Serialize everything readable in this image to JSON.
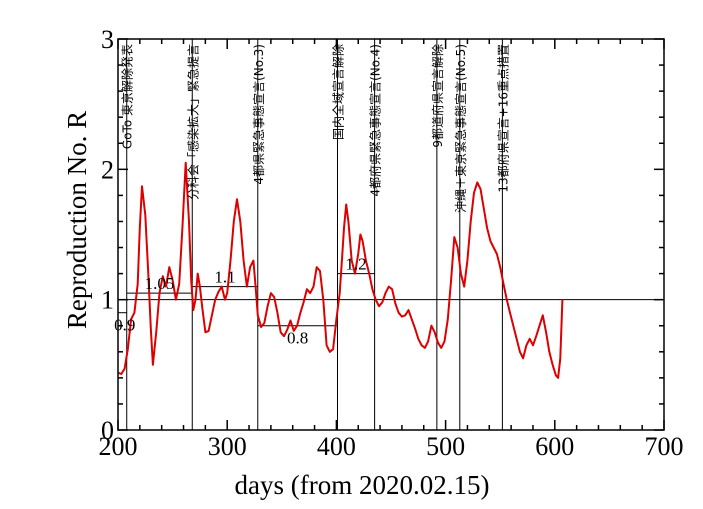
{
  "chart_data": {
    "type": "line",
    "title": "",
    "xlabel": "days   (from 2020.02.15)",
    "ylabel": "Reproduction No.  R",
    "xlim": [
      200,
      700
    ],
    "ylim": [
      0,
      3
    ],
    "xticks": [
      200,
      300,
      400,
      500,
      600,
      700
    ],
    "yticks": [
      0,
      1,
      2,
      3
    ],
    "grid": false,
    "legend": "none",
    "line_color": "#dd0000",
    "reference_line": {
      "y": 1.0
    },
    "series": [
      {
        "points": [
          [
            200,
            0.44
          ],
          [
            203,
            0.43
          ],
          [
            206,
            0.47
          ],
          [
            209,
            0.62
          ],
          [
            212,
            0.85
          ],
          [
            215,
            0.9
          ],
          [
            218,
            1.12
          ],
          [
            220,
            1.55
          ],
          [
            222,
            1.87
          ],
          [
            225,
            1.65
          ],
          [
            228,
            1.15
          ],
          [
            230,
            0.78
          ],
          [
            232,
            0.5
          ],
          [
            235,
            0.75
          ],
          [
            238,
            1.05
          ],
          [
            241,
            1.18
          ],
          [
            244,
            1.1
          ],
          [
            247,
            1.25
          ],
          [
            250,
            1.15
          ],
          [
            253,
            1.0
          ],
          [
            256,
            1.12
          ],
          [
            259,
            1.55
          ],
          [
            262,
            2.05
          ],
          [
            265,
            1.6
          ],
          [
            267,
            1.15
          ],
          [
            269,
            0.92
          ],
          [
            271,
            1.0
          ],
          [
            273,
            1.2
          ],
          [
            275,
            1.1
          ],
          [
            277,
            0.95
          ],
          [
            280,
            0.75
          ],
          [
            283,
            0.76
          ],
          [
            286,
            0.88
          ],
          [
            289,
            1.0
          ],
          [
            292,
            1.06
          ],
          [
            295,
            1.1
          ],
          [
            298,
            1.0
          ],
          [
            300,
            1.05
          ],
          [
            303,
            1.3
          ],
          [
            306,
            1.6
          ],
          [
            309,
            1.77
          ],
          [
            312,
            1.6
          ],
          [
            315,
            1.3
          ],
          [
            318,
            1.1
          ],
          [
            321,
            1.25
          ],
          [
            324,
            1.3
          ],
          [
            326,
            1.1
          ],
          [
            328,
            0.88
          ],
          [
            331,
            0.79
          ],
          [
            334,
            0.82
          ],
          [
            337,
            0.95
          ],
          [
            340,
            1.05
          ],
          [
            343,
            1.02
          ],
          [
            346,
            0.9
          ],
          [
            349,
            0.75
          ],
          [
            352,
            0.72
          ],
          [
            355,
            0.77
          ],
          [
            358,
            0.84
          ],
          [
            361,
            0.76
          ],
          [
            364,
            0.8
          ],
          [
            367,
            0.9
          ],
          [
            370,
            0.98
          ],
          [
            373,
            1.08
          ],
          [
            376,
            1.05
          ],
          [
            379,
            1.1
          ],
          [
            382,
            1.25
          ],
          [
            385,
            1.22
          ],
          [
            388,
            1.0
          ],
          [
            391,
            0.65
          ],
          [
            394,
            0.6
          ],
          [
            397,
            0.62
          ],
          [
            400,
            0.85
          ],
          [
            403,
            1.05
          ],
          [
            405,
            1.3
          ],
          [
            407,
            1.55
          ],
          [
            409,
            1.73
          ],
          [
            411,
            1.6
          ],
          [
            414,
            1.3
          ],
          [
            417,
            1.2
          ],
          [
            420,
            1.35
          ],
          [
            422,
            1.5
          ],
          [
            424,
            1.45
          ],
          [
            427,
            1.3
          ],
          [
            430,
            1.2
          ],
          [
            433,
            1.08
          ],
          [
            436,
            1.0
          ],
          [
            439,
            0.95
          ],
          [
            442,
            0.98
          ],
          [
            445,
            1.05
          ],
          [
            448,
            1.1
          ],
          [
            451,
            1.08
          ],
          [
            454,
            0.97
          ],
          [
            457,
            0.9
          ],
          [
            460,
            0.87
          ],
          [
            463,
            0.88
          ],
          [
            466,
            0.92
          ],
          [
            469,
            0.85
          ],
          [
            472,
            0.78
          ],
          [
            475,
            0.7
          ],
          [
            478,
            0.65
          ],
          [
            481,
            0.63
          ],
          [
            484,
            0.68
          ],
          [
            487,
            0.8
          ],
          [
            490,
            0.75
          ],
          [
            493,
            0.67
          ],
          [
            496,
            0.63
          ],
          [
            499,
            0.68
          ],
          [
            502,
            0.85
          ],
          [
            505,
            1.15
          ],
          [
            508,
            1.48
          ],
          [
            511,
            1.4
          ],
          [
            514,
            1.2
          ],
          [
            517,
            1.1
          ],
          [
            520,
            1.3
          ],
          [
            523,
            1.6
          ],
          [
            526,
            1.82
          ],
          [
            529,
            1.9
          ],
          [
            532,
            1.85
          ],
          [
            535,
            1.7
          ],
          [
            538,
            1.55
          ],
          [
            541,
            1.45
          ],
          [
            544,
            1.4
          ],
          [
            547,
            1.35
          ],
          [
            550,
            1.25
          ],
          [
            553,
            1.12
          ],
          [
            556,
            1.0
          ],
          [
            559,
            0.9
          ],
          [
            562,
            0.8
          ],
          [
            565,
            0.7
          ],
          [
            568,
            0.6
          ],
          [
            571,
            0.55
          ],
          [
            574,
            0.65
          ],
          [
            577,
            0.7
          ],
          [
            580,
            0.65
          ],
          [
            583,
            0.72
          ],
          [
            586,
            0.8
          ],
          [
            589,
            0.88
          ],
          [
            592,
            0.75
          ],
          [
            595,
            0.6
          ],
          [
            598,
            0.5
          ],
          [
            601,
            0.42
          ],
          [
            603,
            0.4
          ],
          [
            605,
            0.55
          ],
          [
            607,
            1.0
          ]
        ]
      }
    ],
    "event_lines": [
      {
        "x": 208,
        "label": "GoTo 東京解除発表"
      },
      {
        "x": 268,
        "label": "分科会「感染拡大」緊急提言"
      },
      {
        "x": 328,
        "label": "4都県緊急事態宣言(No.3)"
      },
      {
        "x": 401,
        "label": "国内全域宣言解除"
      },
      {
        "x": 435,
        "label": "4都府県緊急事態宣言(No.4)"
      },
      {
        "x": 492,
        "label": "9都道府県宣言解除"
      },
      {
        "x": 513,
        "label": "沖縄＋東京緊急事態宣言(No.5)"
      },
      {
        "x": 552,
        "label": "13都府県宣言+16重点措置"
      }
    ],
    "level_segments": [
      {
        "x0": 208,
        "x1": 268,
        "y": 1.05,
        "label": "1.05"
      },
      {
        "x0": 268,
        "x1": 328,
        "y": 1.1,
        "label": "1.1"
      },
      {
        "x0": 328,
        "x1": 401,
        "y": 0.8,
        "label": "0.8"
      },
      {
        "x0": 401,
        "x1": 435,
        "y": 1.2,
        "label": "1.2"
      },
      {
        "x0": 200,
        "x1": 208,
        "y": 0.9,
        "label": "0.9"
      }
    ]
  }
}
